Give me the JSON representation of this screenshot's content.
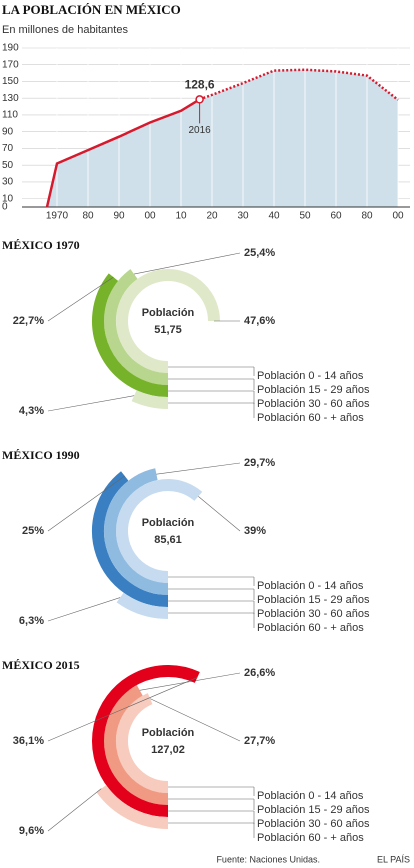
{
  "title": "LA POBLACIÓN EN MÉXICO",
  "source": "Fuente: Naciones Unidas.",
  "publisher": "EL PAÍS",
  "chart_data": [
    {
      "type": "line",
      "subtitle": "En millones de habitantes",
      "categories": [
        null,
        "1970",
        "80",
        "90",
        "00",
        "10",
        "20",
        "30",
        "40",
        "50",
        "60",
        "80",
        "00"
      ],
      "values": [
        0,
        52,
        68,
        84,
        101,
        115,
        134,
        148,
        163,
        164,
        162,
        157,
        128
      ],
      "color": "#d7192d",
      "area_color": "#cfe0ea",
      "ylim": [
        0,
        190
      ],
      "yticks": [
        0,
        10,
        30,
        50,
        70,
        90,
        110,
        130,
        150,
        170,
        190
      ],
      "grid": true,
      "annotation": {
        "value": 128.6,
        "label": "128,6",
        "x_label": "2016"
      }
    },
    {
      "type": "radial",
      "title": "MÉXICO 1970",
      "center_title": "Población",
      "center_value": "51,75",
      "series": [
        {
          "name": "Población 0 - 14 años",
          "color": "#dfe9c9",
          "values": [
            47.6
          ],
          "value_labels": [
            "47,6%"
          ]
        },
        {
          "name": "Población 15 - 29 años",
          "color": "#b8d68d",
          "values": [
            25.4
          ],
          "value_labels": [
            "25,4%"
          ]
        },
        {
          "name": "Población 30 - 60 años",
          "color": "#77b22b",
          "values": [
            22.7
          ],
          "value_labels": [
            "22,7%"
          ]
        },
        {
          "name": "Población 60 - + años",
          "color": "#dce8c6",
          "values": [
            4.3
          ],
          "value_labels": [
            "4,3%"
          ]
        }
      ]
    },
    {
      "type": "radial",
      "title": "MÉXICO 1990",
      "center_title": "Población",
      "center_value": "85,61",
      "series": [
        {
          "name": "Población 0 - 14 años",
          "color": "#c6dbef",
          "values": [
            39
          ],
          "value_labels": [
            "39%"
          ]
        },
        {
          "name": "Población 15 - 29 años",
          "color": "#8fbbe0",
          "values": [
            29.7
          ],
          "value_labels": [
            "29,7%"
          ]
        },
        {
          "name": "Población 30 - 60 años",
          "color": "#3a7fc1",
          "values": [
            25
          ],
          "value_labels": [
            "25%"
          ]
        },
        {
          "name": "Población 60 - + años",
          "color": "#c6dbef",
          "values": [
            6.3
          ],
          "value_labels": [
            "6,3%"
          ]
        }
      ]
    },
    {
      "type": "radial",
      "title": "MÉXICO 2015",
      "center_title": "Población",
      "center_value": "127,02",
      "series": [
        {
          "name": "Población 0 - 14 años",
          "color": "#f7cbbd",
          "values": [
            27.7
          ],
          "value_labels": [
            "27,7%"
          ]
        },
        {
          "name": "Población 15 - 29 años",
          "color": "#f19a83",
          "values": [
            26.6
          ],
          "value_labels": [
            "26,6%"
          ]
        },
        {
          "name": "Población 30 - 60 años",
          "color": "#e3001b",
          "values": [
            36.1
          ],
          "value_labels": [
            "36,1%"
          ]
        },
        {
          "name": "Población 60 - + años",
          "color": "#f7cbbd",
          "values": [
            9.6
          ],
          "value_labels": [
            "9,6%"
          ]
        }
      ]
    }
  ]
}
